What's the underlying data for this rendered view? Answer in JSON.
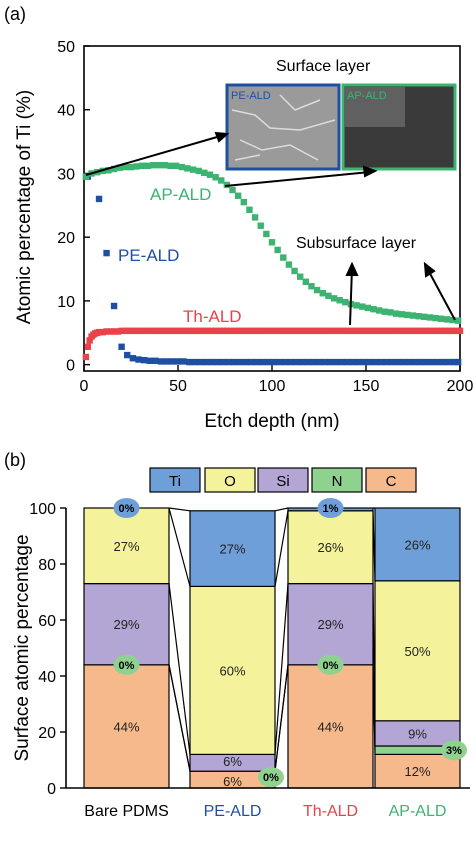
{
  "chart_data": [
    {
      "panel_label": "(a)",
      "type": "scatter",
      "xlabel": "Etch depth (nm)",
      "ylabel": "Atomic percentage of Ti (%)",
      "xlim": [
        0,
        200
      ],
      "ylim": [
        -1,
        50
      ],
      "xticks": [
        "0",
        "50",
        "100",
        "150",
        "200"
      ],
      "yticks": [
        "0",
        "10",
        "20",
        "30",
        "40",
        "50"
      ],
      "grid": false,
      "series": [
        {
          "name": "AP-ALD",
          "color": "#3cb371",
          "x": [
            1,
            4,
            7,
            10,
            13,
            16,
            19,
            22,
            25,
            28,
            31,
            34,
            37,
            40,
            43,
            46,
            49,
            52,
            55,
            58,
            61,
            64,
            67,
            70,
            73,
            76,
            79,
            82,
            85,
            88,
            91,
            94,
            97,
            100,
            103,
            106,
            109,
            112,
            115,
            118,
            121,
            124,
            127,
            130,
            133,
            136,
            139,
            142,
            145,
            148,
            151,
            154,
            157,
            160,
            163,
            166,
            169,
            172,
            175,
            178,
            181,
            184,
            187,
            190,
            193,
            196,
            199
          ],
          "y": [
            29.5,
            30,
            30.2,
            30.4,
            30.5,
            30.7,
            30.9,
            31,
            31,
            31.1,
            31.2,
            31.2,
            31.3,
            31.3,
            31.3,
            31.2,
            31.2,
            31,
            30.8,
            30.6,
            30.4,
            30.1,
            29.8,
            29.4,
            28.9,
            28.2,
            27.4,
            26.5,
            25.5,
            24.3,
            23.1,
            21.8,
            20.5,
            19.2,
            18,
            16.8,
            15.7,
            14.7,
            13.8,
            13,
            12.3,
            11.7,
            11.2,
            10.8,
            10.4,
            10.1,
            9.8,
            9.5,
            9.3,
            9.1,
            8.9,
            8.7,
            8.5,
            8.3,
            8.2,
            8,
            7.9,
            7.8,
            7.7,
            7.6,
            7.5,
            7.4,
            7.3,
            7.2,
            7.1,
            7,
            6.9
          ]
        },
        {
          "name": "PE-ALD",
          "color": "#1f4fa3",
          "x": [
            2,
            8,
            12,
            16,
            20,
            23,
            26,
            29,
            32,
            35,
            38,
            41,
            44,
            47,
            50,
            53,
            56,
            59,
            62,
            65,
            68,
            71,
            74,
            77,
            80,
            83,
            86,
            89,
            92,
            95,
            98,
            101,
            104,
            107,
            110,
            113,
            116,
            119,
            122,
            125,
            128,
            131,
            134,
            137,
            140,
            143,
            146,
            149,
            152,
            155,
            158,
            161,
            164,
            167,
            170,
            173,
            176,
            179,
            182,
            185,
            188,
            191,
            194,
            197,
            199
          ],
          "y": [
            29.5,
            26,
            17.5,
            9.2,
            2.8,
            1.5,
            1,
            0.8,
            0.7,
            0.6,
            0.6,
            0.5,
            0.5,
            0.5,
            0.5,
            0.5,
            0.4,
            0.4,
            0.4,
            0.4,
            0.4,
            0.4,
            0.4,
            0.4,
            0.4,
            0.4,
            0.4,
            0.4,
            0.4,
            0.4,
            0.4,
            0.4,
            0.4,
            0.4,
            0.4,
            0.4,
            0.4,
            0.4,
            0.4,
            0.4,
            0.4,
            0.4,
            0.4,
            0.4,
            0.4,
            0.4,
            0.4,
            0.4,
            0.4,
            0.4,
            0.4,
            0.4,
            0.4,
            0.4,
            0.4,
            0.4,
            0.4,
            0.4,
            0.4,
            0.4,
            0.4,
            0.4,
            0.4,
            0.4,
            0.4
          ]
        },
        {
          "name": "Th-ALD",
          "color": "#e8424a",
          "x": [
            1,
            2,
            3,
            4,
            5,
            6,
            7,
            8,
            10,
            12,
            14,
            16,
            18,
            20,
            22,
            24,
            26,
            28,
            30,
            32,
            34,
            36,
            38,
            40,
            42,
            44,
            46,
            48,
            50,
            52,
            54,
            56,
            58,
            60,
            62,
            64,
            66,
            68,
            70,
            72,
            74,
            76,
            78,
            80,
            82,
            84,
            86,
            88,
            90,
            92,
            94,
            96,
            98,
            100,
            102,
            104,
            106,
            108,
            110,
            112,
            114,
            116,
            118,
            120,
            122,
            124,
            126,
            128,
            130,
            132,
            134,
            136,
            138,
            140,
            142,
            144,
            146,
            148,
            150,
            152,
            154,
            156,
            158,
            160,
            162,
            164,
            166,
            168,
            170,
            172,
            174,
            176,
            178,
            180,
            182,
            184,
            186,
            188,
            190,
            192,
            194,
            196,
            198,
            200
          ],
          "y": [
            1.2,
            2.8,
            3.8,
            4.4,
            4.7,
            4.9,
            5,
            5.1,
            5.1,
            5.2,
            5.2,
            5.2,
            5.2,
            5.3,
            5.3,
            5.3,
            5.3,
            5.3,
            5.3,
            5.3,
            5.3,
            5.3,
            5.3,
            5.3,
            5.3,
            5.3,
            5.3,
            5.3,
            5.3,
            5.3,
            5.3,
            5.3,
            5.3,
            5.3,
            5.3,
            5.3,
            5.3,
            5.3,
            5.3,
            5.3,
            5.3,
            5.3,
            5.3,
            5.3,
            5.3,
            5.3,
            5.3,
            5.3,
            5.3,
            5.3,
            5.3,
            5.3,
            5.3,
            5.3,
            5.3,
            5.3,
            5.3,
            5.3,
            5.3,
            5.3,
            5.3,
            5.3,
            5.3,
            5.3,
            5.3,
            5.3,
            5.3,
            5.3,
            5.3,
            5.3,
            5.3,
            5.3,
            5.3,
            5.3,
            5.3,
            5.3,
            5.3,
            5.3,
            5.3,
            5.3,
            5.3,
            5.3,
            5.3,
            5.3,
            5.3,
            5.3,
            5.3,
            5.3,
            5.3,
            5.3,
            5.3,
            5.3,
            5.3,
            5.3,
            5.3,
            5.3,
            5.3,
            5.3,
            5.3,
            5.3,
            5.3,
            5.3,
            5.3,
            5.3
          ]
        }
      ],
      "annotations": {
        "surface_layer": "Surface layer",
        "subsurface_layer": "Subsurface layer",
        "inset_pe": {
          "label": "PE-ALD",
          "border_color": "#1f4fa3"
        },
        "inset_ap": {
          "label": "AP-ALD",
          "border_color": "#3cb371"
        }
      }
    },
    {
      "panel_label": "(b)",
      "type": "bar",
      "stacked": true,
      "ylabel": "Surface atomic percentage",
      "ylim": [
        0,
        100
      ],
      "yticks": [
        "0",
        "20",
        "40",
        "60",
        "80",
        "100"
      ],
      "categories": [
        {
          "label": "Bare PDMS",
          "color": "#000000"
        },
        {
          "label": "PE-ALD",
          "color": "#1f4fa3"
        },
        {
          "label": "Th-ALD",
          "color": "#e8424a"
        },
        {
          "label": "AP-ALD",
          "color": "#3cb371"
        }
      ],
      "legend": [
        {
          "name": "Ti",
          "color": "#6e9fd8"
        },
        {
          "name": "O",
          "color": "#f4f39b"
        },
        {
          "name": "Si",
          "color": "#b3a6d4"
        },
        {
          "name": "N",
          "color": "#8fd18f"
        },
        {
          "name": "C",
          "color": "#f6b98c"
        }
      ],
      "stack_order": [
        "C",
        "N",
        "Si",
        "O",
        "Ti"
      ],
      "series": [
        {
          "name": "C",
          "values": [
            44,
            6,
            44,
            12
          ],
          "labels": [
            "44%",
            "6%",
            "44%",
            "12%"
          ]
        },
        {
          "name": "N",
          "values": [
            0,
            0,
            0,
            3
          ],
          "labels": [
            "0%",
            "0%",
            "0%",
            "3%"
          ]
        },
        {
          "name": "Si",
          "values": [
            29,
            6,
            29,
            9
          ],
          "labels": [
            "29%",
            "6%",
            "29%",
            "9%"
          ]
        },
        {
          "name": "O",
          "values": [
            27,
            60,
            26,
            50
          ],
          "labels": [
            "27%",
            "60%",
            "26%",
            "50%"
          ]
        },
        {
          "name": "Ti",
          "values": [
            0,
            27,
            1,
            26
          ],
          "labels": [
            "0%",
            "27%",
            "1%",
            "26%"
          ]
        }
      ]
    }
  ]
}
